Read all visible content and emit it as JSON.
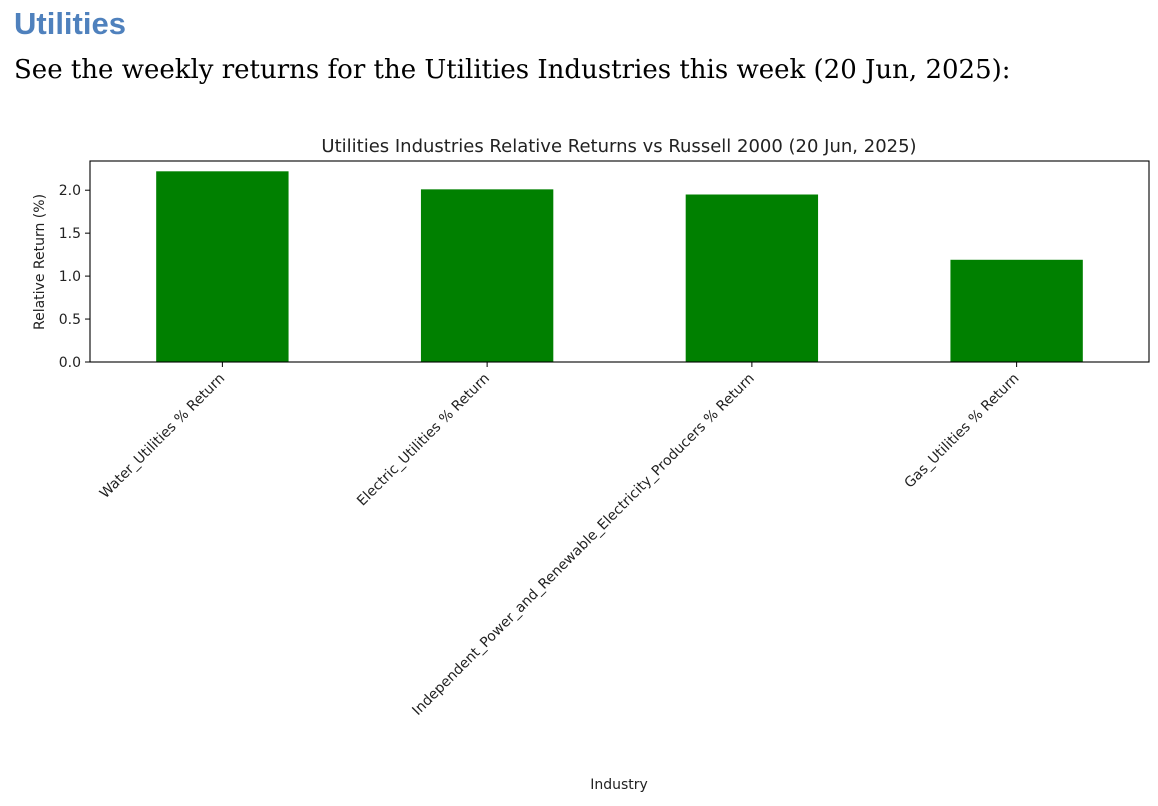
{
  "page": {
    "heading": "Utilities",
    "intro": "See the weekly returns for the Utilities Industries this week (20 Jun, 2025):"
  },
  "chart_data": {
    "type": "bar",
    "title": "Utilities Industries Relative Returns vs Russell 2000 (20 Jun, 2025)",
    "xlabel": "Industry",
    "ylabel": "Relative Return (%)",
    "categories": [
      "Water_Utilities % Return",
      "Electric_Utilities % Return",
      "Independent_Power_and_Renewable_Electricity_Producers % Return",
      "Gas_Utilities % Return"
    ],
    "values": [
      2.22,
      2.01,
      1.95,
      1.19
    ],
    "ylim": [
      0,
      2.34
    ],
    "yticks": [
      0.0,
      0.5,
      1.0,
      1.5,
      2.0
    ],
    "ytick_labels": [
      "0.0",
      "0.5",
      "1.0",
      "1.5",
      "2.0"
    ],
    "bar_color": "#008000",
    "grid": false,
    "legend": "none"
  }
}
